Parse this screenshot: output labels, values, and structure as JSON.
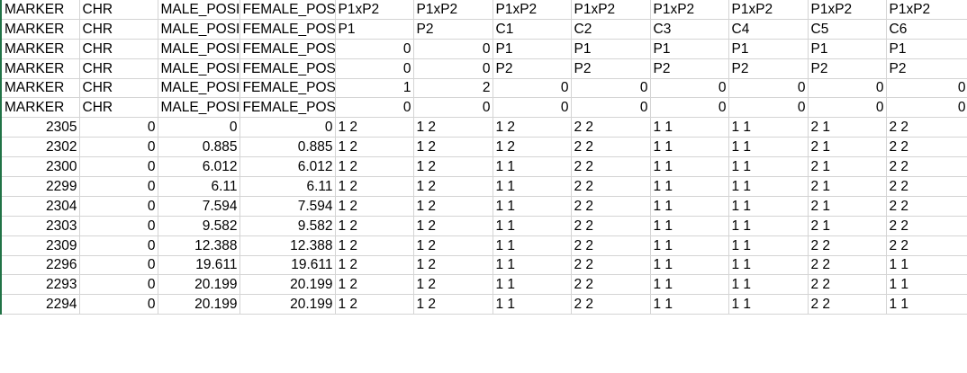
{
  "header_rows": [
    [
      "MARKER",
      "CHR",
      "MALE_POSITION",
      "FEMALE_POSITION",
      "P1xP2",
      "P1xP2",
      "P1xP2",
      "P1xP2",
      "P1xP2",
      "P1xP2",
      "P1xP2",
      "P1xP2"
    ],
    [
      "MARKER",
      "CHR",
      "MALE_POSITION",
      "FEMALE_POSITION",
      "P1",
      "P2",
      "C1",
      "C2",
      "C3",
      "C4",
      "C5",
      "C6"
    ],
    [
      "MARKER",
      "CHR",
      "MALE_POSITION",
      "FEMALE_POSITION",
      "0",
      "0",
      "P1",
      "P1",
      "P1",
      "P1",
      "P1",
      "P1"
    ],
    [
      "MARKER",
      "CHR",
      "MALE_POSITION",
      "FEMALE_POSITION",
      "0",
      "0",
      "P2",
      "P2",
      "P2",
      "P2",
      "P2",
      "P2"
    ],
    [
      "MARKER",
      "CHR",
      "MALE_POSITION",
      "FEMALE_POSITION",
      "1",
      "2",
      "0",
      "0",
      "0",
      "0",
      "0",
      "0"
    ],
    [
      "MARKER",
      "CHR",
      "MALE_POSITION",
      "FEMALE_POSITION",
      "0",
      "0",
      "0",
      "0",
      "0",
      "0",
      "0",
      "0"
    ]
  ],
  "data_rows": [
    [
      "2305",
      "0",
      "0",
      "0",
      "1 2",
      "1 2",
      "1 2",
      "2 2",
      "1 1",
      "1 1",
      "2 1",
      "2 2"
    ],
    [
      "2302",
      "0",
      "0.885",
      "0.885",
      "1 2",
      "1 2",
      "1 2",
      "2 2",
      "1 1",
      "1 1",
      "2 1",
      "2 2"
    ],
    [
      "2300",
      "0",
      "6.012",
      "6.012",
      "1 2",
      "1 2",
      "1 1",
      "2 2",
      "1 1",
      "1 1",
      "2 1",
      "2 2"
    ],
    [
      "2299",
      "0",
      "6.11",
      "6.11",
      "1 2",
      "1 2",
      "1 1",
      "2 2",
      "1 1",
      "1 1",
      "2 1",
      "2 2"
    ],
    [
      "2304",
      "0",
      "7.594",
      "7.594",
      "1 2",
      "1 2",
      "1 1",
      "2 2",
      "1 1",
      "1 1",
      "2 1",
      "2 2"
    ],
    [
      "2303",
      "0",
      "9.582",
      "9.582",
      "1 2",
      "1 2",
      "1 1",
      "2 2",
      "1 1",
      "1 1",
      "2 1",
      "2 2"
    ],
    [
      "2309",
      "0",
      "12.388",
      "12.388",
      "1 2",
      "1 2",
      "1 1",
      "2 2",
      "1 1",
      "1 1",
      "2 2",
      "2 2"
    ],
    [
      "2296",
      "0",
      "19.611",
      "19.611",
      "1 2",
      "1 2",
      "1 1",
      "2 2",
      "1 1",
      "1 1",
      "2 2",
      "1 1"
    ],
    [
      "2293",
      "0",
      "20.199",
      "20.199",
      "1 2",
      "1 2",
      "1 1",
      "2 2",
      "1 1",
      "1 1",
      "2 2",
      "1 1"
    ],
    [
      "2294",
      "0",
      "20.199",
      "20.199",
      "1 2",
      "1 2",
      "1 1",
      "2 2",
      "1 1",
      "1 1",
      "2 2",
      "1 1"
    ]
  ],
  "colors": {
    "gridline": "#d4d4d4",
    "selected_column_border": "#217346",
    "text": "#000000",
    "background": "#ffffff"
  }
}
